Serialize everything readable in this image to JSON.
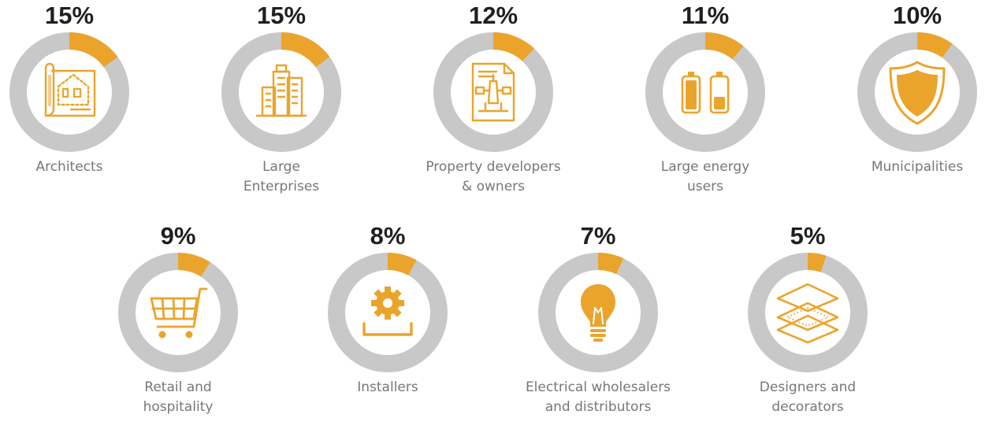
{
  "colors": {
    "accent": "#EBA42B",
    "ring": "#C8C8C8",
    "icon": "#EBA42B"
  },
  "chart_data": {
    "type": "pie",
    "variant": "donut-small-multiples",
    "items": [
      {
        "value": 15,
        "pct_label": "15%",
        "label_lines": [
          "Architects"
        ],
        "icon": "blueprint-icon"
      },
      {
        "value": 15,
        "pct_label": "15%",
        "label_lines": [
          "Large",
          "Enterprises"
        ],
        "icon": "buildings-icon"
      },
      {
        "value": 12,
        "pct_label": "12%",
        "label_lines": [
          "Property developers",
          "& owners"
        ],
        "icon": "building-plan-icon"
      },
      {
        "value": 11,
        "pct_label": "11%",
        "label_lines": [
          "Large energy",
          "users"
        ],
        "icon": "batteries-icon"
      },
      {
        "value": 10,
        "pct_label": "10%",
        "label_lines": [
          "Municipalities"
        ],
        "icon": "shield-icon"
      },
      {
        "value": 9,
        "pct_label": "9%",
        "label_lines": [
          "Retail and",
          "hospitality"
        ],
        "icon": "shopping-cart-icon"
      },
      {
        "value": 8,
        "pct_label": "8%",
        "label_lines": [
          "Installers"
        ],
        "icon": "gear-tray-icon"
      },
      {
        "value": 7,
        "pct_label": "7%",
        "label_lines": [
          "Electrical wholesalers",
          "and distributors"
        ],
        "icon": "lightbulb-icon"
      },
      {
        "value": 5,
        "pct_label": "5%",
        "label_lines": [
          "Designers and",
          "decorators"
        ],
        "icon": "layers-icon"
      }
    ]
  }
}
